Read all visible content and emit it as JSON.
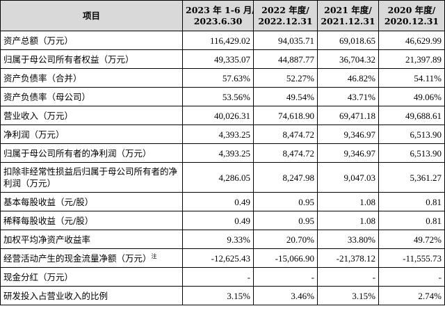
{
  "table": {
    "headers": [
      {
        "line1": "项目",
        "line2": ""
      },
      {
        "line1": "2023 年 1-6 月/",
        "line2": "2023.6.30"
      },
      {
        "line1": "2022 年度/",
        "line2": "2022.12.31"
      },
      {
        "line1": "2021 年度/",
        "line2": "2021.12.31"
      },
      {
        "line1": "2020 年度/",
        "line2": "2020.12.31"
      }
    ],
    "rows": [
      {
        "label": "资产总额（万元）",
        "sup": "",
        "values": [
          "116,429.02",
          "94,035.71",
          "69,018.65",
          "46,629.99"
        ]
      },
      {
        "label": "归属于母公司所有者权益（万元）",
        "sup": "",
        "values": [
          "49,335.07",
          "44,887.77",
          "36,704.32",
          "21,397.89"
        ]
      },
      {
        "label": "资产负债率（合并）",
        "sup": "",
        "values": [
          "57.63%",
          "52.27%",
          "46.82%",
          "54.11%"
        ]
      },
      {
        "label": "资产负债率（母公司）",
        "sup": "",
        "values": [
          "53.56%",
          "49.54%",
          "43.71%",
          "49.06%"
        ]
      },
      {
        "label": "营业收入（万元）",
        "sup": "",
        "values": [
          "40,026.31",
          "74,618.90",
          "69,471.18",
          "49,688.61"
        ]
      },
      {
        "label": "净利润（万元）",
        "sup": "",
        "values": [
          "4,393.25",
          "8,474.72",
          "9,346.97",
          "6,513.90"
        ]
      },
      {
        "label": "归属于母公司所有者的净利润（万元）",
        "sup": "",
        "values": [
          "4,393.25",
          "8,474.72",
          "9,346.97",
          "6,513.90"
        ]
      },
      {
        "label": "扣除非经常性损益后归属于母公司所有者的净利润（万元）",
        "sup": "",
        "values": [
          "4,286.05",
          "8,247.98",
          "9,047.03",
          "5,361.27"
        ]
      },
      {
        "label": "基本每股收益（元/股）",
        "sup": "",
        "values": [
          "0.49",
          "0.95",
          "1.08",
          "0.81"
        ]
      },
      {
        "label": "稀释每股收益（元/股）",
        "sup": "",
        "values": [
          "0.49",
          "0.95",
          "1.08",
          "0.81"
        ]
      },
      {
        "label": "加权平均净资产收益率",
        "sup": "",
        "values": [
          "9.33%",
          "20.70%",
          "33.80%",
          "49.72%"
        ]
      },
      {
        "label": "经营活动产生的现金流量净额（万元）",
        "sup": "注",
        "values": [
          "-12,625.43",
          "-15,066.90",
          "-21,378.12",
          "-11,555.73"
        ]
      },
      {
        "label": "现金分红（万元）",
        "sup": "",
        "values": [
          "-",
          "-",
          "-",
          "-"
        ]
      },
      {
        "label": "研发投入占营业收入的比例",
        "sup": "",
        "values": [
          "3.15%",
          "3.46%",
          "3.15%",
          "2.74%"
        ]
      }
    ]
  }
}
